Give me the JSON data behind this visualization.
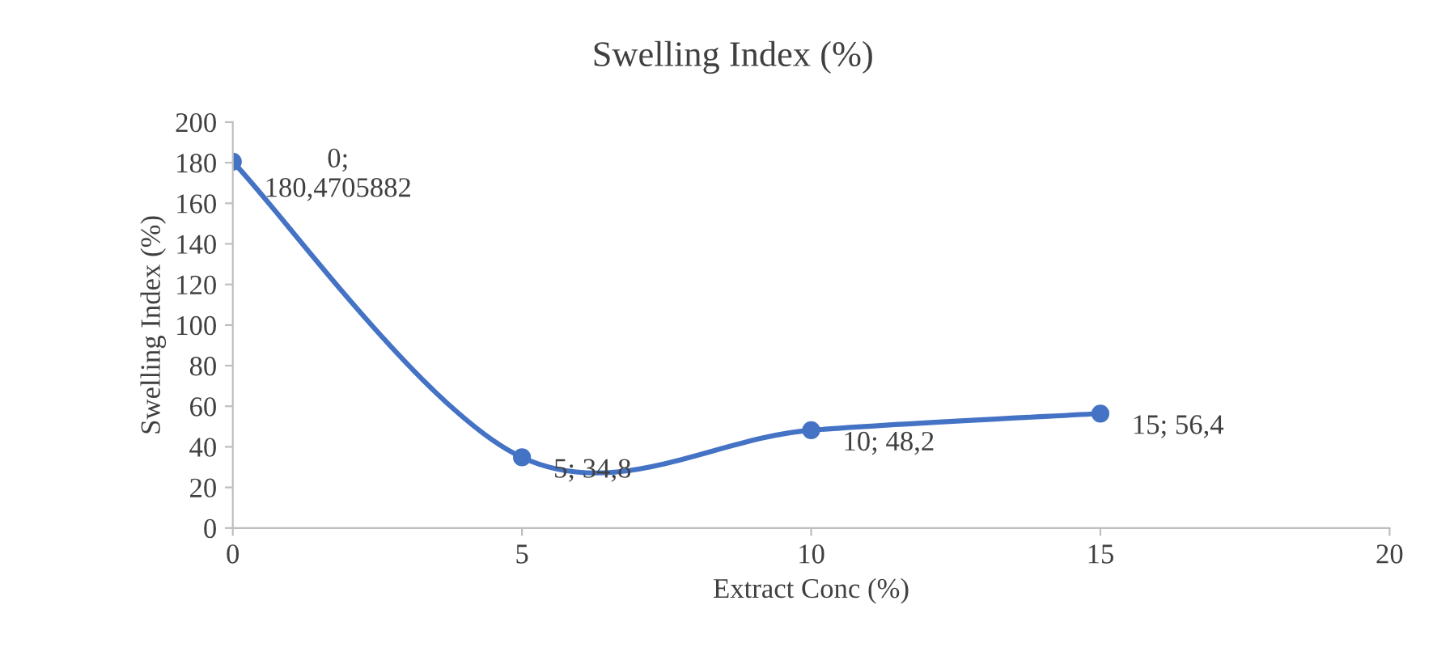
{
  "chart_data": {
    "type": "line",
    "title": "Swelling Index (%)",
    "xlabel": "Extract Conc (%)",
    "ylabel": "Swelling Index (%)",
    "x": [
      0,
      5,
      10,
      15
    ],
    "series": [
      {
        "color": "#4472c4",
        "values": [
          180.4705882,
          34.8,
          48.2,
          56.4
        ],
        "value_labels": [
          "0;\n180,4705882",
          "5; 34,8",
          "10; 48,2",
          "15; 56,4"
        ]
      }
    ],
    "xlim": [
      0,
      20
    ],
    "xticks": [
      0,
      5,
      10,
      15,
      20
    ],
    "ylim": [
      0,
      200
    ],
    "yticks": [
      0,
      20,
      40,
      60,
      80,
      100,
      120,
      140,
      160,
      180,
      200
    ],
    "grid": false,
    "marker": "circle",
    "line_style": "solid"
  }
}
